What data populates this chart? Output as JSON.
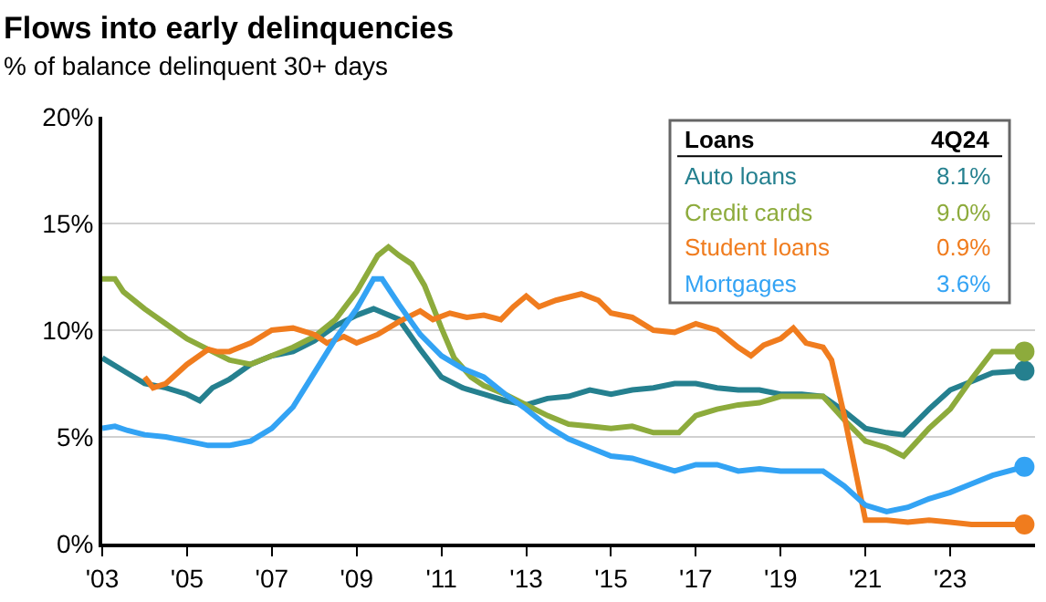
{
  "chart_data": {
    "type": "line",
    "title": "Flows into early delinquencies",
    "subtitle": "% of balance delinquent 30+ days",
    "xlim": [
      2003,
      2025
    ],
    "xticks": [
      {
        "value": 2003,
        "label": "'03"
      },
      {
        "value": 2005,
        "label": "'05"
      },
      {
        "value": 2007,
        "label": "'07"
      },
      {
        "value": 2009,
        "label": "'09"
      },
      {
        "value": 2011,
        "label": "'11"
      },
      {
        "value": 2013,
        "label": "'13"
      },
      {
        "value": 2015,
        "label": "'15"
      },
      {
        "value": 2017,
        "label": "'17"
      },
      {
        "value": 2019,
        "label": "'19"
      },
      {
        "value": 2021,
        "label": "'21"
      },
      {
        "value": 2023,
        "label": "'23"
      }
    ],
    "ylim": [
      0,
      20
    ],
    "yticks": [
      {
        "value": 0,
        "label": "0%"
      },
      {
        "value": 5,
        "label": "5%"
      },
      {
        "value": 10,
        "label": "10%"
      },
      {
        "value": 15,
        "label": "15%"
      },
      {
        "value": 20,
        "label": "20%"
      }
    ],
    "grid": "y",
    "legend": false,
    "line_style": "solid",
    "annotations": [
      "Loans",
      "4Q24",
      "8.1%",
      "9.0%",
      "0.9%",
      "3.6%"
    ],
    "series": [
      {
        "name": "Auto loans",
        "color": "#25808f",
        "x": [
          2003,
          2003.5,
          2004,
          2004.5,
          2005,
          2005.3,
          2005.6,
          2006,
          2006.5,
          2007,
          2007.5,
          2008,
          2008.5,
          2009,
          2009.4,
          2010,
          2010.5,
          2011,
          2011.5,
          2012,
          2012.5,
          2013,
          2013.5,
          2014,
          2014.5,
          2015,
          2015.5,
          2016,
          2016.5,
          2017,
          2017.5,
          2018,
          2018.5,
          2019,
          2019.5,
          2020,
          2020.5,
          2021,
          2021.5,
          2021.9,
          2022.5,
          2023,
          2023.5,
          2024,
          2024.75
        ],
        "values": [
          8.7,
          8.1,
          7.5,
          7.3,
          7.0,
          6.7,
          7.3,
          7.7,
          8.4,
          8.8,
          9.0,
          9.5,
          10.2,
          10.7,
          11.0,
          10.5,
          9.1,
          7.8,
          7.3,
          7.0,
          6.7,
          6.5,
          6.8,
          6.9,
          7.2,
          7.0,
          7.2,
          7.3,
          7.5,
          7.5,
          7.3,
          7.2,
          7.2,
          7.0,
          7.0,
          6.9,
          6.2,
          5.4,
          5.2,
          5.1,
          6.3,
          7.2,
          7.6,
          8.0,
          8.1
        ]
      },
      {
        "name": "Credit cards",
        "color": "#8dab3c",
        "x": [
          2003,
          2003.3,
          2003.5,
          2004,
          2004.5,
          2005,
          2005.5,
          2006,
          2006.5,
          2007,
          2007.5,
          2008,
          2008.5,
          2009,
          2009.5,
          2009.75,
          2010,
          2010.3,
          2010.6,
          2011,
          2011.3,
          2011.7,
          2012,
          2012.5,
          2013,
          2013.5,
          2014,
          2014.5,
          2015,
          2015.5,
          2016,
          2016.6,
          2017,
          2017.5,
          2018,
          2018.5,
          2019,
          2019.5,
          2020,
          2020.5,
          2021,
          2021.5,
          2021.9,
          2022.5,
          2023,
          2023.5,
          2024,
          2024.4,
          2024.75
        ],
        "values": [
          12.4,
          12.4,
          11.8,
          11.0,
          10.3,
          9.6,
          9.1,
          8.6,
          8.4,
          8.8,
          9.2,
          9.7,
          10.5,
          11.8,
          13.5,
          13.9,
          13.5,
          13.1,
          12.1,
          10.1,
          8.7,
          7.8,
          7.4,
          7.0,
          6.5,
          6.0,
          5.6,
          5.5,
          5.4,
          5.5,
          5.2,
          5.2,
          6.0,
          6.3,
          6.5,
          6.6,
          6.9,
          6.9,
          6.9,
          5.8,
          4.8,
          4.5,
          4.1,
          5.4,
          6.3,
          7.7,
          9.0,
          9.0,
          9.0
        ]
      },
      {
        "name": "Student loans",
        "color": "#f07c1e",
        "x": [
          2004,
          2004.2,
          2004.5,
          2005,
          2005.5,
          2005.7,
          2006,
          2006.5,
          2007,
          2007.5,
          2008,
          2008.3,
          2008.7,
          2009,
          2009.5,
          2010,
          2010.5,
          2010.8,
          2011.2,
          2011.6,
          2012,
          2012.4,
          2012.7,
          2013,
          2013.3,
          2013.7,
          2014.3,
          2014.7,
          2015,
          2015.5,
          2016,
          2016.5,
          2017,
          2017.5,
          2018,
          2018.3,
          2018.6,
          2019,
          2019.3,
          2019.6,
          2020,
          2020.2,
          2020.5,
          2021,
          2021.5,
          2022,
          2022.5,
          2023,
          2023.5,
          2024.75
        ],
        "values": [
          7.8,
          7.3,
          7.5,
          8.4,
          9.1,
          9.0,
          9.0,
          9.4,
          10.0,
          10.1,
          9.8,
          9.4,
          9.7,
          9.4,
          9.8,
          10.4,
          10.9,
          10.5,
          10.8,
          10.6,
          10.7,
          10.5,
          11.1,
          11.6,
          11.1,
          11.4,
          11.7,
          11.4,
          10.8,
          10.6,
          10.0,
          9.9,
          10.3,
          10.0,
          9.2,
          8.8,
          9.3,
          9.6,
          10.1,
          9.4,
          9.2,
          8.6,
          6.0,
          1.1,
          1.1,
          1.0,
          1.1,
          1.0,
          0.9,
          0.9
        ]
      },
      {
        "name": "Mortgages",
        "color": "#33a3f4",
        "x": [
          2003,
          2003.3,
          2003.6,
          2004,
          2004.5,
          2005,
          2005.5,
          2006,
          2006.5,
          2007,
          2007.5,
          2008,
          2008.5,
          2009,
          2009.4,
          2009.6,
          2010,
          2010.5,
          2011,
          2011.5,
          2012,
          2012.5,
          2013,
          2013.5,
          2014,
          2014.5,
          2015,
          2015.5,
          2016,
          2016.5,
          2017,
          2017.5,
          2018,
          2018.5,
          2019,
          2020,
          2020.5,
          2021,
          2021.5,
          2022,
          2022.5,
          2023,
          2023.5,
          2024,
          2024.75
        ],
        "values": [
          5.4,
          5.5,
          5.3,
          5.1,
          5.0,
          4.8,
          4.6,
          4.6,
          4.8,
          5.4,
          6.4,
          8.0,
          9.6,
          11.0,
          12.4,
          12.4,
          11.2,
          9.8,
          8.8,
          8.2,
          7.8,
          7.0,
          6.3,
          5.5,
          4.9,
          4.5,
          4.1,
          4.0,
          3.7,
          3.4,
          3.7,
          3.7,
          3.4,
          3.5,
          3.4,
          3.4,
          2.7,
          1.8,
          1.5,
          1.7,
          2.1,
          2.4,
          2.8,
          3.2,
          3.6
        ]
      }
    ]
  }
}
